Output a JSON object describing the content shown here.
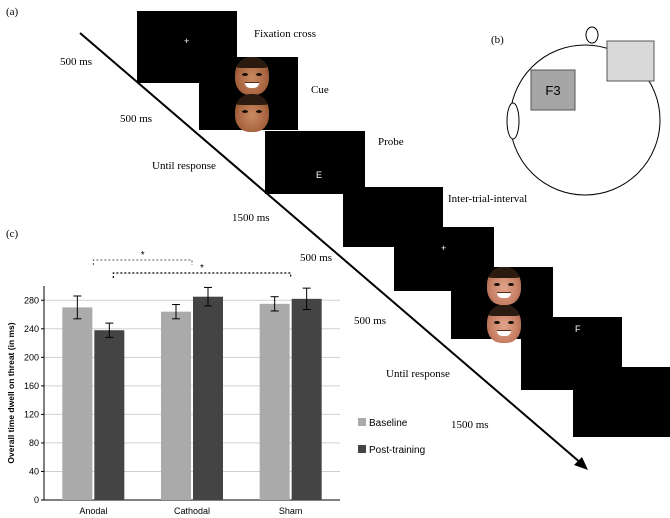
{
  "panels": {
    "a": "(a)",
    "b": "(b)",
    "c": "(c)"
  },
  "trial": {
    "steps": [
      "Fixation cross",
      "Cue",
      "Probe",
      "Inter-trial-interval"
    ],
    "timings": [
      "500 ms",
      "500 ms",
      "Until response",
      "1500 ms",
      "500 ms",
      "500 ms",
      "Until response",
      "1500 ms"
    ],
    "fixation_glyph": "+",
    "probe_letters": [
      "E",
      "F"
    ]
  },
  "head": {
    "electrode": "F3"
  },
  "chart_data": {
    "type": "bar",
    "categories": [
      "Anodal",
      "Cathodal",
      "Sham"
    ],
    "series": [
      {
        "name": "Baseline",
        "values": [
          270,
          264,
          275
        ],
        "errors": [
          16,
          10,
          10
        ],
        "color": "#aaaaaa"
      },
      {
        "name": "Post-training",
        "values": [
          238,
          285,
          282
        ],
        "errors": [
          10,
          13,
          15
        ],
        "color": "#444444"
      }
    ],
    "ylabel": "Overall time dwell on threat (in ms)",
    "ylim": [
      0,
      300
    ],
    "yticks": [
      0,
      40,
      80,
      120,
      160,
      200,
      240,
      280
    ],
    "grid": true,
    "legend": "right",
    "significance": [
      "*",
      "*"
    ]
  }
}
